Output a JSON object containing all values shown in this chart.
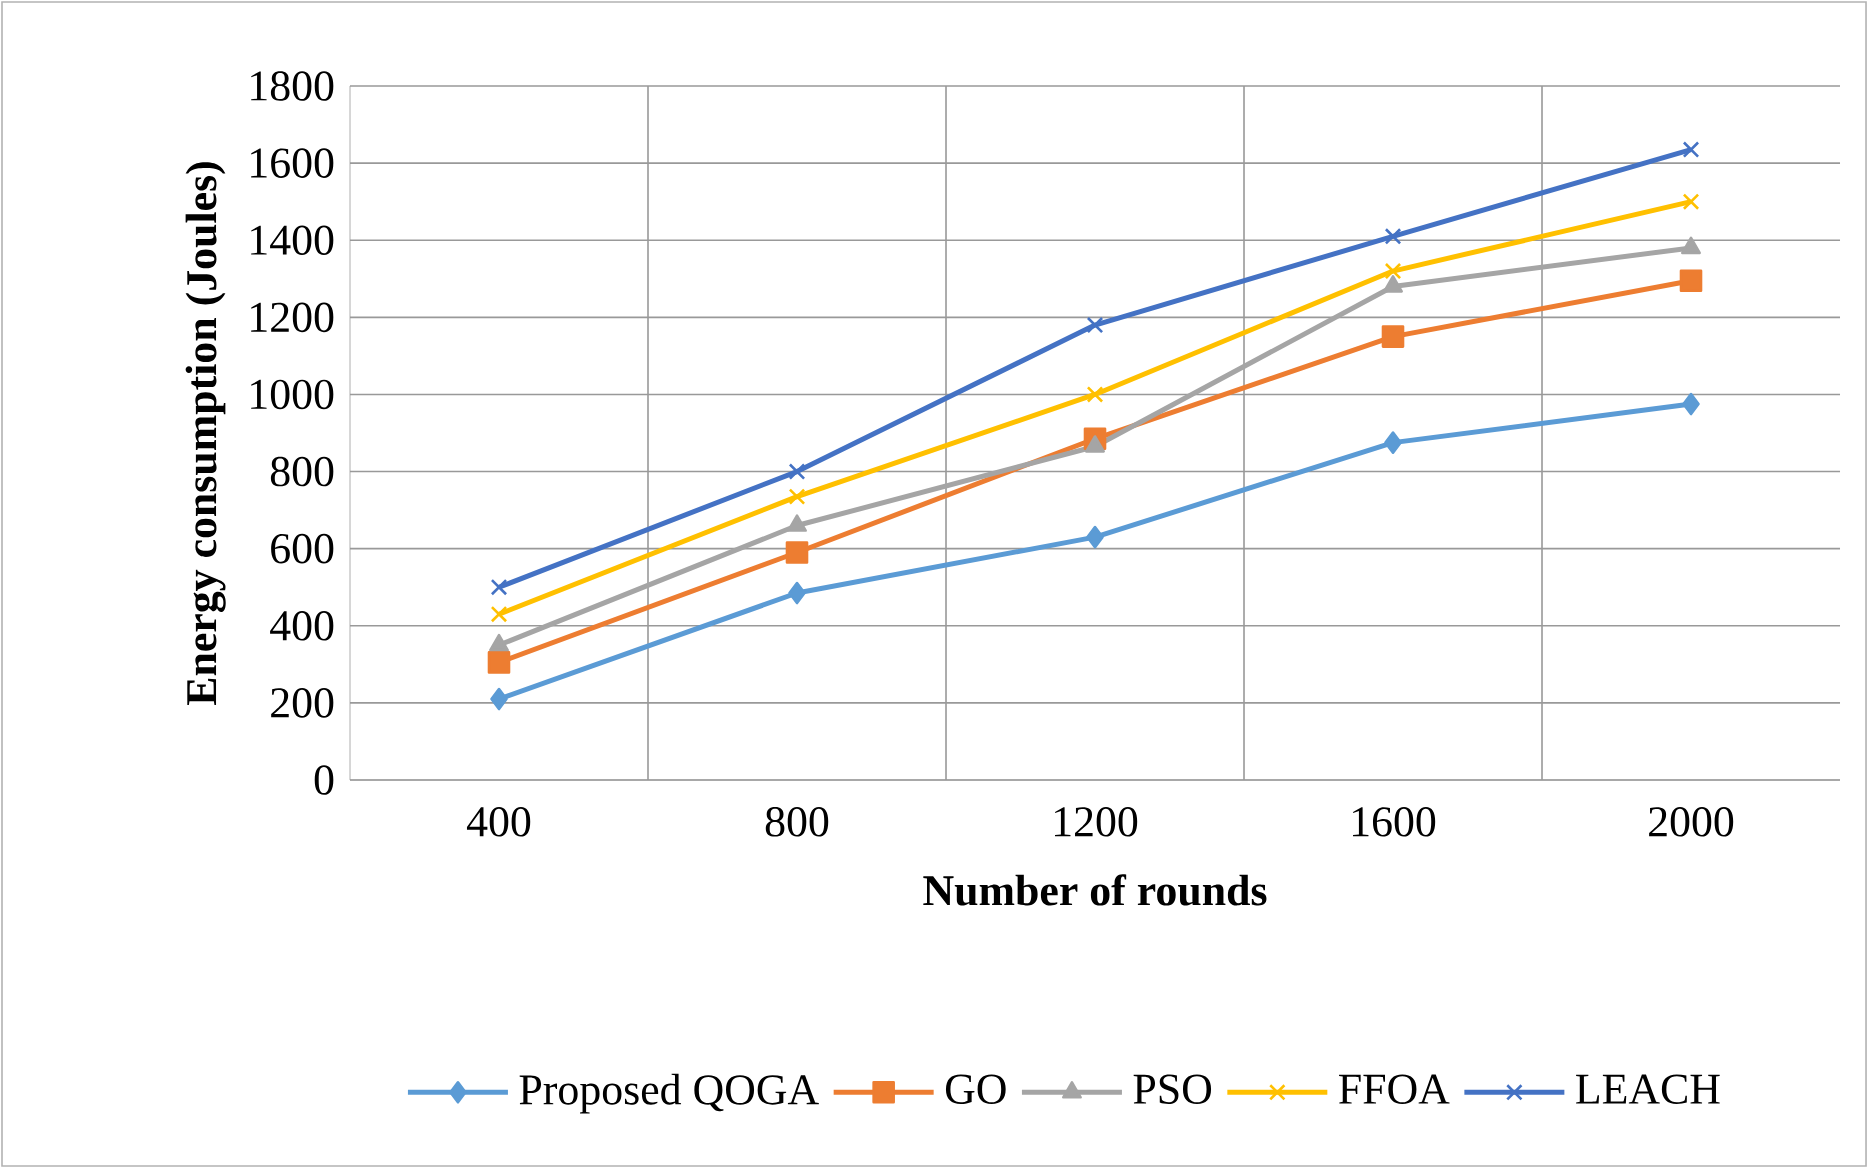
{
  "chart_data": {
    "type": "line",
    "xlabel": "Number of rounds",
    "ylabel": "Energy consumption (Joules)",
    "categories": [
      "400",
      "800",
      "1200",
      "1600",
      "2000"
    ],
    "ylim": [
      0,
      1800
    ],
    "yticks": [
      0,
      200,
      400,
      600,
      800,
      1000,
      1200,
      1400,
      1600,
      1800
    ],
    "grid": true,
    "legend": "bottom",
    "series": [
      {
        "name": "Proposed QOGA",
        "color": "#5b9bd5",
        "marker": "diamond",
        "values": [
          210,
          485,
          630,
          875,
          975
        ]
      },
      {
        "name": "GO",
        "color": "#ed7d31",
        "marker": "square",
        "values": [
          305,
          590,
          885,
          1150,
          1295
        ]
      },
      {
        "name": "PSO",
        "color": "#a5a5a5",
        "marker": "triangle",
        "values": [
          350,
          660,
          865,
          1280,
          1380
        ]
      },
      {
        "name": "FFOA",
        "color": "#ffc000",
        "marker": "cross",
        "values": [
          430,
          735,
          1000,
          1320,
          1500
        ]
      },
      {
        "name": "LEACH",
        "color": "#4472c4",
        "marker": "cross",
        "values": [
          500,
          800,
          1180,
          1410,
          1635
        ]
      }
    ]
  }
}
